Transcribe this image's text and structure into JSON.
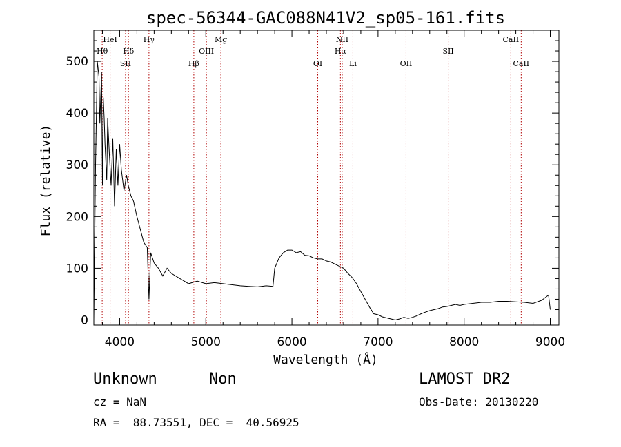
{
  "chart_data": {
    "type": "line",
    "title": "spec-56344-GAC088N41V2_sp05-161.fits",
    "xlabel": "Wavelength (Å)",
    "ylabel": "Flux (relative)",
    "xlim": [
      3700,
      9100
    ],
    "ylim": [
      -10,
      560
    ],
    "xticks": [
      4000,
      5000,
      6000,
      7000,
      8000,
      9000
    ],
    "yticks": [
      0,
      100,
      200,
      300,
      400,
      500
    ],
    "grid": false,
    "series": [
      {
        "x": [
          3700,
          3720,
          3740,
          3760,
          3770,
          3790,
          3800,
          3810,
          3820,
          3830,
          3850,
          3860,
          3880,
          3900,
          3920,
          3940,
          3960,
          3980,
          4000,
          4020,
          4050,
          4080,
          4100,
          4130,
          4160,
          4200,
          4240,
          4280,
          4320,
          4340,
          4360,
          4400,
          4450,
          4500,
          4550,
          4600,
          4700,
          4800,
          4900,
          5000,
          5100,
          5200,
          5300,
          5400,
          5500,
          5600,
          5700,
          5780,
          5800,
          5850,
          5900,
          5950,
          6000,
          6050,
          6100,
          6150,
          6200,
          6250,
          6300,
          6350,
          6400,
          6450,
          6500,
          6550,
          6600,
          6650,
          6700,
          6750,
          6800,
          6850,
          6900,
          6950,
          7000,
          7050,
          7100,
          7150,
          7200,
          7250,
          7300,
          7350,
          7400,
          7450,
          7500,
          7550,
          7600,
          7650,
          7700,
          7750,
          7800,
          7850,
          7900,
          7950,
          8000,
          8100,
          8200,
          8300,
          8400,
          8500,
          8600,
          8700,
          8800,
          8900,
          8980,
          9000
        ],
        "y": [
          0,
          300,
          500,
          470,
          380,
          480,
          260,
          430,
          390,
          340,
          270,
          390,
          320,
          260,
          350,
          220,
          330,
          260,
          340,
          290,
          250,
          280,
          260,
          240,
          230,
          200,
          175,
          150,
          140,
          40,
          130,
          110,
          100,
          85,
          100,
          90,
          80,
          70,
          75,
          70,
          72,
          70,
          68,
          66,
          65,
          64,
          66,
          65,
          100,
          120,
          130,
          135,
          135,
          130,
          132,
          125,
          124,
          120,
          118,
          118,
          114,
          112,
          108,
          104,
          100,
          90,
          82,
          70,
          55,
          40,
          25,
          12,
          10,
          6,
          4,
          2,
          0,
          2,
          5,
          3,
          5,
          8,
          12,
          15,
          18,
          20,
          22,
          25,
          26,
          28,
          30,
          28,
          30,
          32,
          34,
          34,
          36,
          36,
          35,
          34,
          32,
          38,
          48,
          20
        ]
      }
    ],
    "lines": [
      {
        "label": "Hθ",
        "x": 3797,
        "row": 1
      },
      {
        "label": "HeI",
        "x": 3889,
        "row": 0
      },
      {
        "label": "SII",
        "x": 4068,
        "row": 2
      },
      {
        "label": "Hδ",
        "x": 4102,
        "row": 1
      },
      {
        "label": "Hγ",
        "x": 4340,
        "row": 0
      },
      {
        "label": "Hβ",
        "x": 4861,
        "row": 2
      },
      {
        "label": "OIII",
        "x": 5007,
        "row": 1
      },
      {
        "label": "Mg",
        "x": 5175,
        "row": 0
      },
      {
        "label": "OI",
        "x": 6300,
        "row": 2
      },
      {
        "label": "Hα",
        "x": 6563,
        "row": 1
      },
      {
        "label": "NII",
        "x": 6584,
        "row": 0
      },
      {
        "label": "Li",
        "x": 6708,
        "row": 2
      },
      {
        "label": "OII",
        "x": 7325,
        "row": 2
      },
      {
        "label": "SII",
        "x": 7815,
        "row": 1
      },
      {
        "label": "CaII",
        "x": 8542,
        "row": 0
      },
      {
        "label": "CaII",
        "x": 8662,
        "row": 2
      }
    ]
  },
  "info": {
    "obj_class": "Unknown",
    "obj_subclass": "Non",
    "survey": "LAMOST DR2",
    "cz": "cz = NaN",
    "obs_date": "Obs-Date: 20130220",
    "radec": "RA =  88.73551, DEC =  40.56925"
  }
}
